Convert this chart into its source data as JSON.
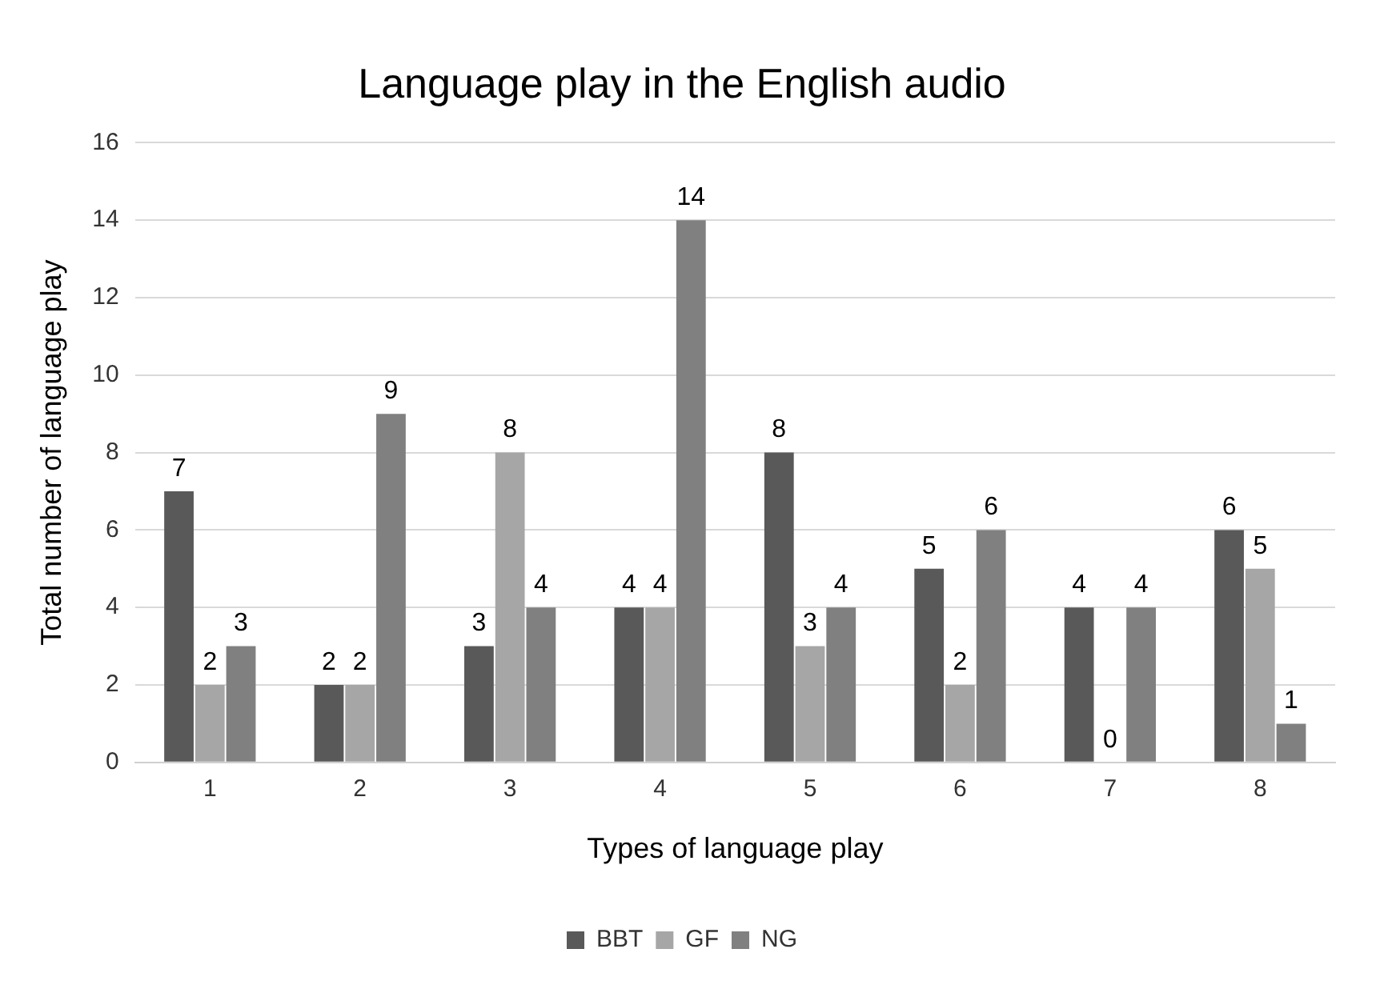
{
  "chart_data": {
    "type": "bar",
    "title": "Language play in the English audio",
    "xlabel": "Types of language play",
    "ylabel": "Total number of language play",
    "categories": [
      "1",
      "2",
      "3",
      "4",
      "5",
      "6",
      "7",
      "8"
    ],
    "series": [
      {
        "name": "BBT",
        "color": "#595959",
        "values": [
          7,
          2,
          3,
          4,
          8,
          5,
          4,
          6
        ]
      },
      {
        "name": "GF",
        "color": "#a6a6a6",
        "values": [
          2,
          2,
          8,
          4,
          3,
          2,
          0,
          5
        ]
      },
      {
        "name": "NG",
        "color": "#808080",
        "values": [
          3,
          9,
          4,
          14,
          4,
          6,
          4,
          1
        ]
      }
    ],
    "ylim": [
      0,
      16
    ],
    "yticks": [
      0,
      2,
      4,
      6,
      8,
      10,
      12,
      14,
      16
    ],
    "grid": "y",
    "legend": "bottom",
    "data_labels": true
  }
}
